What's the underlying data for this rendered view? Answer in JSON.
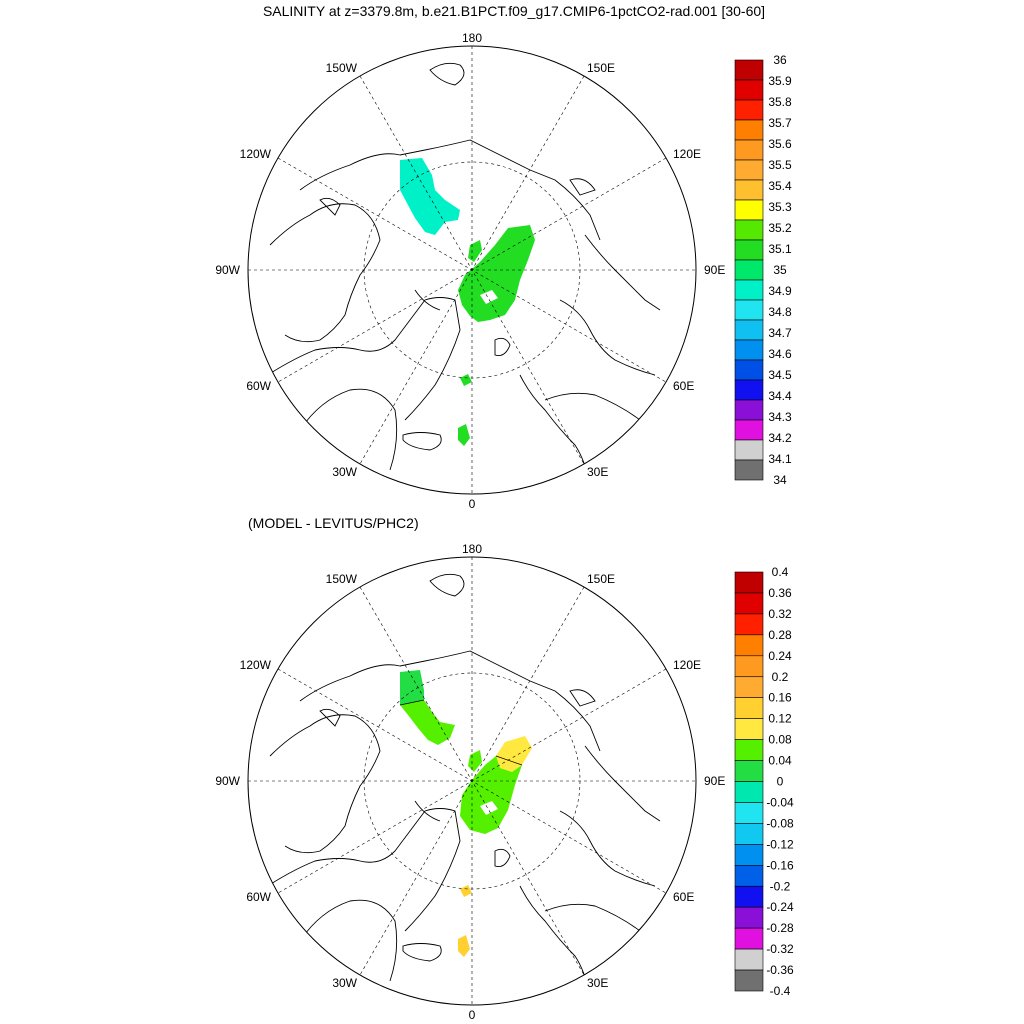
{
  "top_panel": {
    "title": "SALINITY at z=3379.8m, b.e21.B1PCT.f09_g17.CMIP6-1pctCO2-rad.001 [30-60]",
    "longitude_labels": {
      "top": "180",
      "bottom": "0",
      "left": "90W",
      "right": "90E",
      "upper_left_1": "150W",
      "upper_left_2": "120W",
      "upper_right_1": "150E",
      "upper_right_2": "120E",
      "lower_left_1": "60W",
      "lower_left_2": "30W",
      "lower_right_1": "60E",
      "lower_right_2": "30E"
    },
    "colorbar": {
      "labels": [
        "36",
        "35.9",
        "35.8",
        "35.7",
        "35.6",
        "35.5",
        "35.4",
        "35.3",
        "35.2",
        "35.1",
        "35",
        "34.9",
        "34.8",
        "34.7",
        "34.6",
        "34.5",
        "34.4",
        "34.3",
        "34.2",
        "34.1",
        "34"
      ],
      "colors": [
        "#c00000",
        "#e00000",
        "#ff2000",
        "#ff8000",
        "#ff9a20",
        "#ffaa30",
        "#ffc030",
        "#ffff00",
        "#55e800",
        "#22dd22",
        "#00e86a",
        "#00f0c8",
        "#20e4f0",
        "#10c0f0",
        "#0090f0",
        "#0050e8",
        "#1010f0",
        "#8a10d8",
        "#e010e0",
        "#d0d0d0",
        "#707070"
      ]
    }
  },
  "bottom_panel": {
    "title": "(MODEL - LEVITUS/PHC2)",
    "longitude_labels": {
      "top": "180",
      "bottom": "0",
      "left": "90W",
      "right": "90E",
      "upper_left_1": "150W",
      "upper_left_2": "120W",
      "upper_right_1": "150E",
      "upper_right_2": "120E",
      "lower_left_1": "60W",
      "lower_left_2": "30W",
      "lower_right_1": "60E",
      "lower_right_2": "30E"
    },
    "colorbar": {
      "labels": [
        "0.4",
        "0.36",
        "0.32",
        "0.28",
        "0.24",
        "0.2",
        "0.16",
        "0.12",
        "0.08",
        "0.04",
        "0",
        "-0.04",
        "-0.08",
        "-0.12",
        "-0.16",
        "-0.2",
        "-0.24",
        "-0.28",
        "-0.32",
        "-0.36",
        "-0.4"
      ],
      "colors": [
        "#c00000",
        "#e00000",
        "#ff2000",
        "#ff8000",
        "#ff9a20",
        "#ffaa30",
        "#ffd030",
        "#ffe840",
        "#55f000",
        "#22dd44",
        "#00e8b0",
        "#20e4f0",
        "#10c8f0",
        "#0090f0",
        "#0060e8",
        "#1010f0",
        "#8a10d8",
        "#e010e0",
        "#d0d0d0",
        "#707070"
      ]
    }
  }
}
